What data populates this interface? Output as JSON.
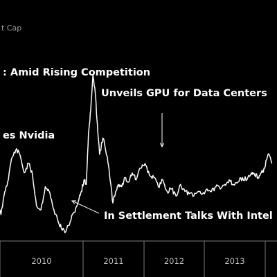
{
  "chart_data": {
    "type": "line",
    "subtitle": "t Cap",
    "x_tick_labels": [
      "2010",
      "2011",
      "2012",
      "2013"
    ],
    "x": [
      2009.0,
      2009.08,
      2009.15,
      2009.2,
      2009.27,
      2009.35,
      2009.42,
      2009.5,
      2009.58,
      2009.65,
      2009.72,
      2009.8,
      2009.88,
      2009.95,
      2010.02,
      2010.1,
      2010.17,
      2010.25,
      2010.33,
      2010.4,
      2010.48,
      2010.53,
      2010.58,
      2010.62,
      2010.66,
      2010.7,
      2010.74,
      2010.78,
      2010.82,
      2010.86,
      2010.92,
      2011.0,
      2011.05,
      2011.1,
      2011.15,
      2011.2,
      2011.26,
      2011.32,
      2011.38,
      2011.45,
      2011.52,
      2011.6,
      2011.68,
      2011.76,
      2011.84,
      2011.92,
      2012.0,
      2012.08,
      2012.16,
      2012.24,
      2012.32,
      2012.4,
      2012.48,
      2012.56,
      2012.64,
      2012.72,
      2012.8,
      2012.88,
      2012.96,
      2013.04,
      2013.12,
      2013.2,
      2013.28,
      2013.36,
      2013.44,
      2013.52,
      2013.6,
      2013.66,
      2013.72,
      2013.78,
      2013.84,
      2013.9,
      2013.97
    ],
    "values": [
      7.0,
      4.5,
      9.5,
      11.5,
      16.5,
      18.5,
      17.5,
      13.5,
      15.5,
      13.0,
      6.5,
      5.5,
      10.5,
      9.5,
      6.0,
      3.5,
      1.5,
      0.8,
      3.0,
      5.0,
      7.5,
      9.5,
      12.0,
      11.0,
      22.0,
      27.0,
      34.5,
      31.0,
      24.0,
      17.5,
      21.0,
      17.0,
      12.0,
      7.0,
      9.5,
      11.0,
      10.5,
      12.5,
      11.5,
      13.5,
      12.0,
      14.5,
      15.5,
      13.0,
      12.5,
      10.5,
      12.0,
      9.5,
      10.0,
      8.5,
      11.0,
      9.5,
      9.0,
      8.5,
      9.5,
      9.0,
      10.0,
      9.5,
      10.5,
      10.0,
      11.0,
      12.0,
      11.0,
      11.5,
      12.5,
      12.0,
      13.5,
      13.0,
      12.5,
      13.5,
      14.5,
      17.5,
      15.5
    ],
    "xlim": [
      2009.0,
      2014.0
    ],
    "ylim": [
      0,
      40
    ],
    "color": "#ffffff",
    "grid": false,
    "annotations": [
      {
        "text": ": Amid Rising Competition",
        "x": 2010.68,
        "y": 30.0,
        "arrow": false
      },
      {
        "text": "Unveils GPU for Data Centers",
        "x": 2011.88,
        "y": 12.5,
        "arrow": true
      },
      {
        "text": "es Nvidia",
        "x": 2009.28,
        "y": 17.0,
        "arrow": false
      },
      {
        "text": "In Settlement Talks With Intel",
        "x": 2010.3,
        "y": 1.5,
        "arrow": true
      }
    ]
  },
  "style": {
    "background": "#000000",
    "line_color": "#ffffff",
    "axis_color": "#7a7a7a",
    "text_color": "#ffffff",
    "tick_color": "#bdbdbd",
    "subtitle_color": "#9a9a9a"
  }
}
